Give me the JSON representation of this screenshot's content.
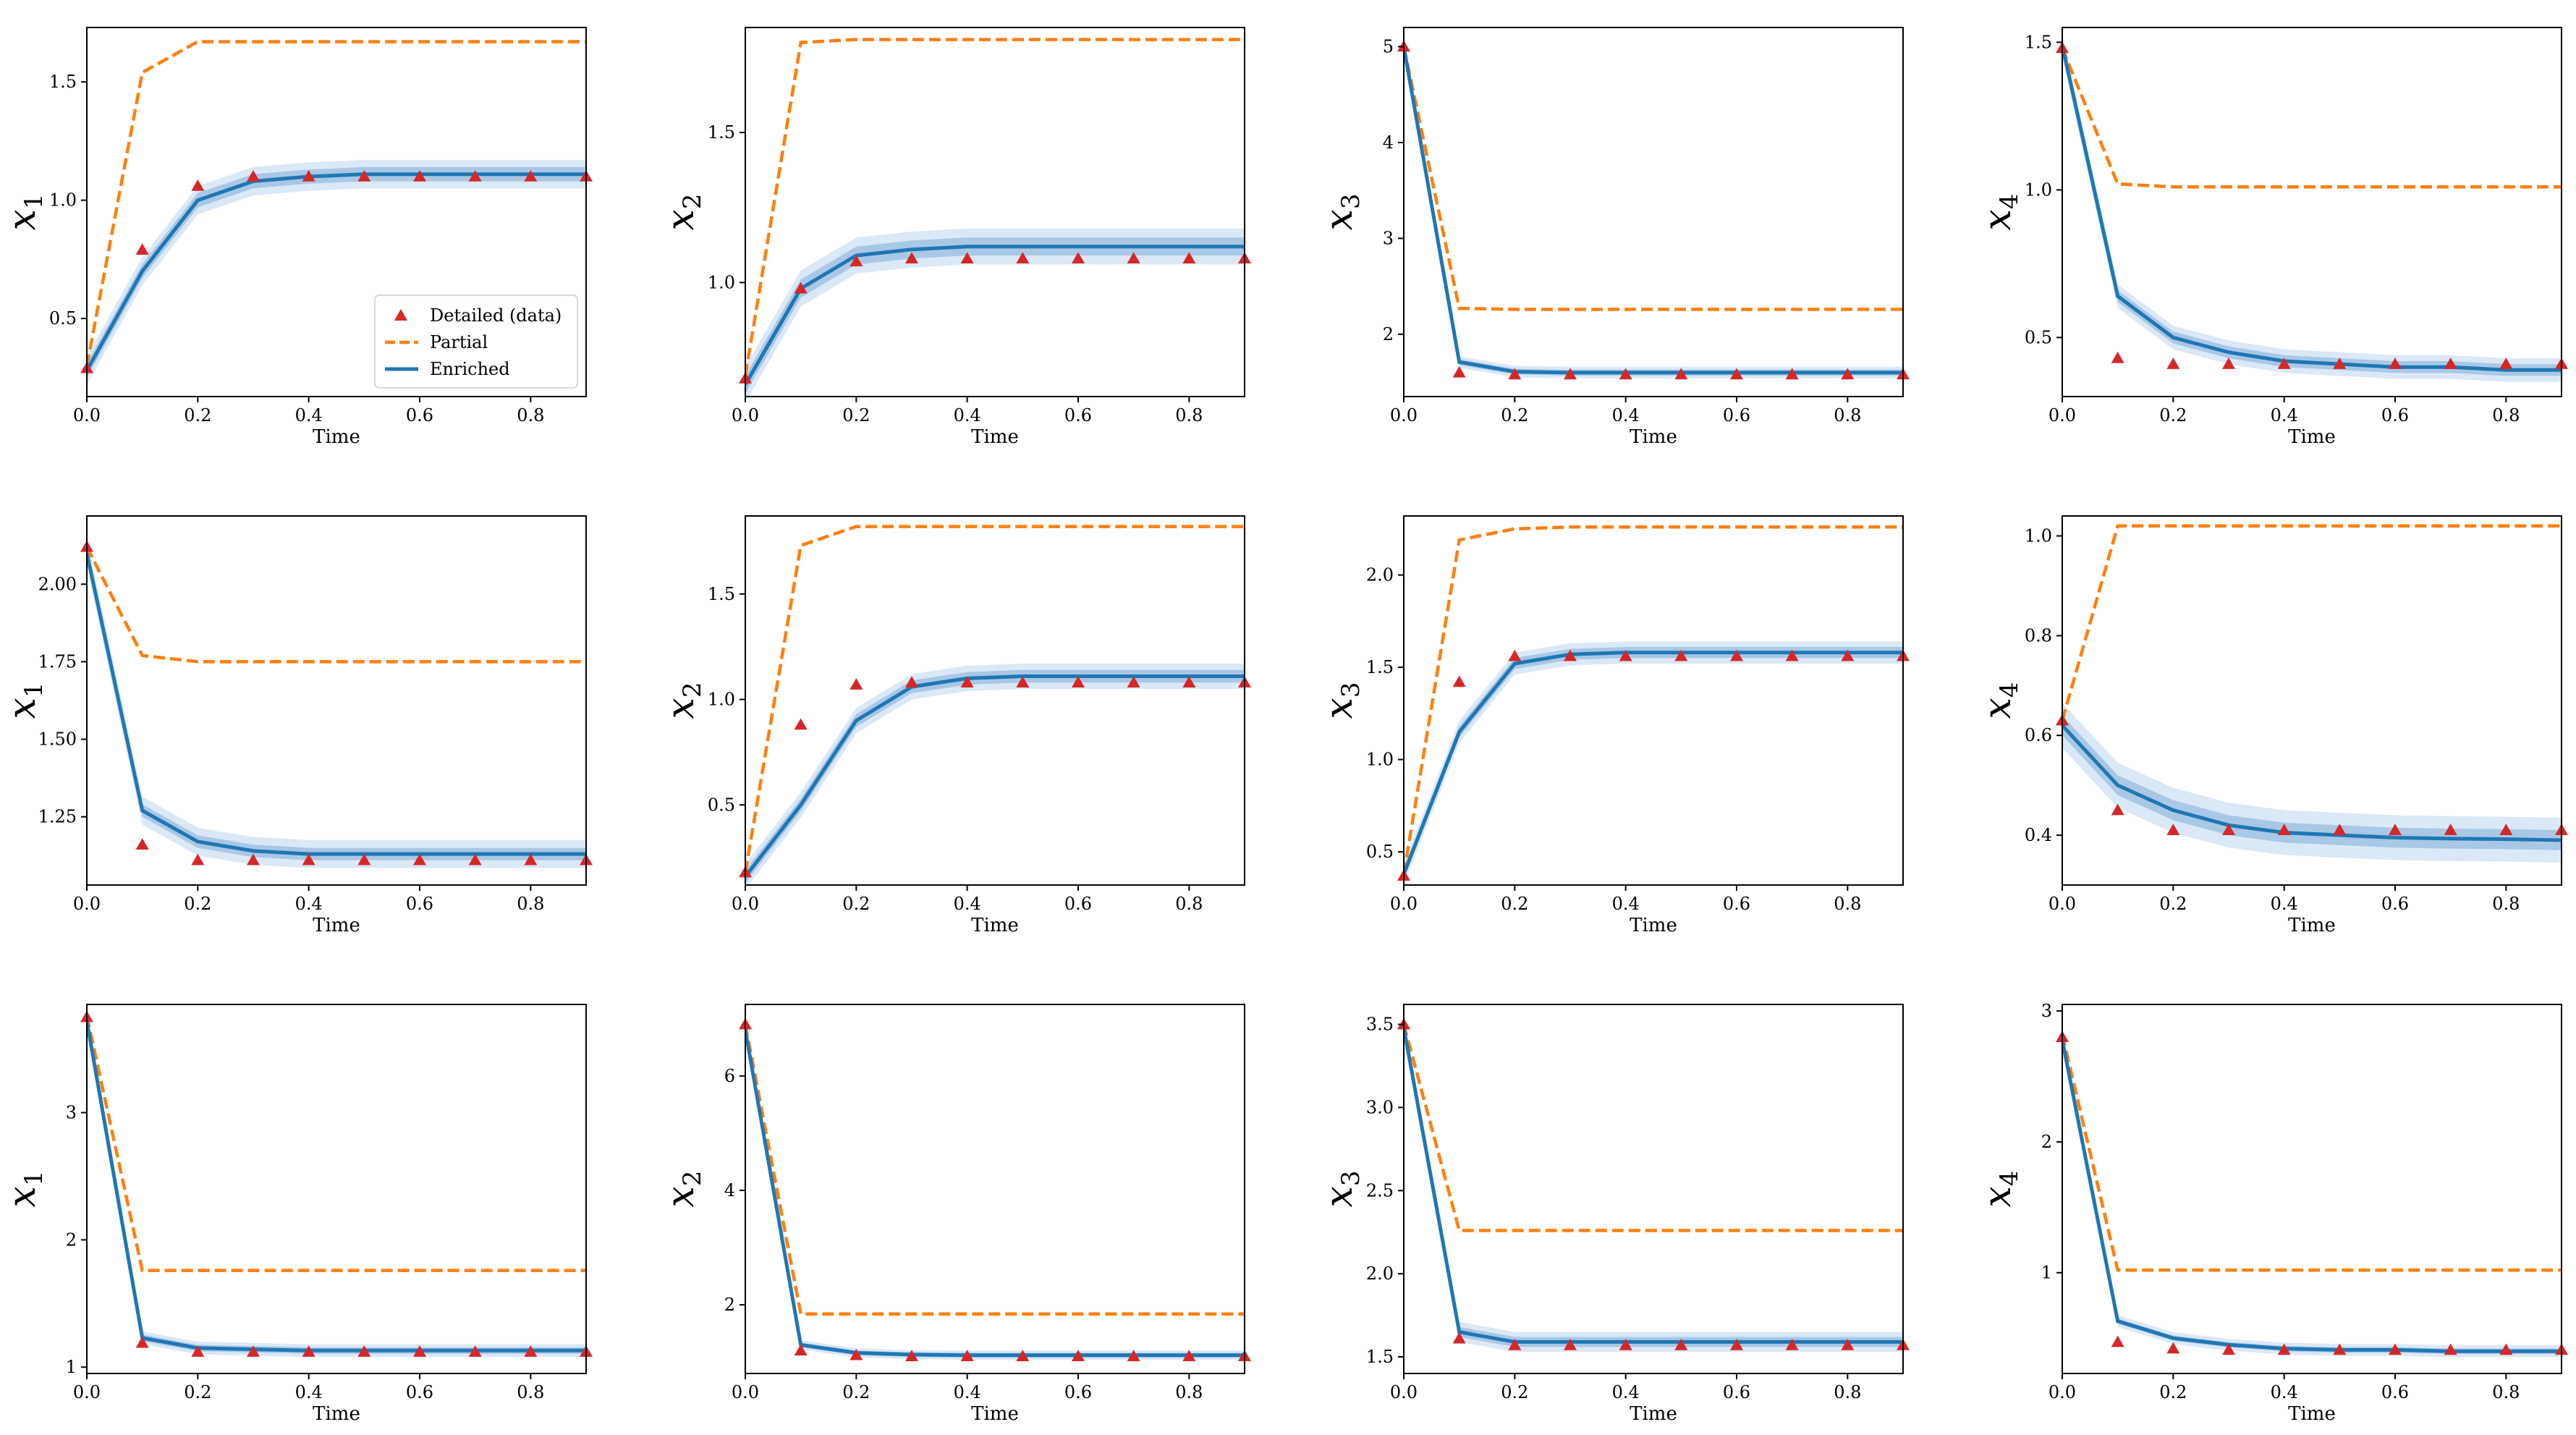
{
  "figure": {
    "legend": {
      "data_label": "Detailed (data)",
      "partial_label": "Partial",
      "enriched_label": "Enriched",
      "location": "lower right of top-left panel"
    },
    "colors": {
      "data": "#d62728",
      "partial": "#ff7f0e",
      "enriched": "#1f77b4",
      "band_outer": "#dbe8f6",
      "band_inner": "#a9c8e6"
    }
  },
  "chart_data": [
    {
      "type": "line",
      "row": 0,
      "col": 0,
      "ylabel_var": "x",
      "ylabel_sub": "1",
      "xlabel": "Time",
      "xlim": [
        0,
        0.9
      ],
      "ylim": [
        0.17,
        1.73
      ],
      "xticks": [
        0.0,
        0.2,
        0.4,
        0.6,
        0.8
      ],
      "yticks": [
        0.5,
        1.0,
        1.5
      ],
      "xtick_labels": [
        "0.0",
        "0.2",
        "0.4",
        "0.6",
        "0.8"
      ],
      "ytick_labels": [
        "0.5",
        "1.0",
        "1.5"
      ],
      "x": [
        0,
        0.1,
        0.2,
        0.3,
        0.4,
        0.5,
        0.6,
        0.7,
        0.8,
        0.9
      ],
      "data": [
        0.29,
        0.79,
        1.06,
        1.1,
        1.1,
        1.1,
        1.1,
        1.1,
        1.1,
        1.1
      ],
      "partial": [
        0.3,
        1.54,
        1.67,
        1.67,
        1.67,
        1.67,
        1.67,
        1.67,
        1.67,
        1.67
      ],
      "enriched": [
        0.28,
        0.7,
        1.0,
        1.08,
        1.1,
        1.11,
        1.11,
        1.11,
        1.11,
        1.11
      ],
      "band_inner": 0.03,
      "band_outer": 0.06,
      "legend": true
    },
    {
      "type": "line",
      "row": 0,
      "col": 1,
      "ylabel_var": "x",
      "ylabel_sub": "2",
      "xlabel": "Time",
      "xlim": [
        0,
        0.9
      ],
      "ylim": [
        0.62,
        1.85
      ],
      "xticks": [
        0.0,
        0.2,
        0.4,
        0.6,
        0.8
      ],
      "yticks": [
        1.0,
        1.5
      ],
      "xtick_labels": [
        "0.0",
        "0.2",
        "0.4",
        "0.6",
        "0.8"
      ],
      "ytick_labels": [
        "1.0",
        "1.5"
      ],
      "x": [
        0,
        0.1,
        0.2,
        0.3,
        0.4,
        0.5,
        0.6,
        0.7,
        0.8,
        0.9
      ],
      "data": [
        0.68,
        0.98,
        1.07,
        1.08,
        1.08,
        1.08,
        1.08,
        1.08,
        1.08,
        1.08
      ],
      "partial": [
        0.69,
        1.8,
        1.81,
        1.81,
        1.81,
        1.81,
        1.81,
        1.81,
        1.81,
        1.81
      ],
      "enriched": [
        0.66,
        0.98,
        1.09,
        1.11,
        1.12,
        1.12,
        1.12,
        1.12,
        1.12,
        1.12
      ],
      "band_inner": 0.03,
      "band_outer": 0.06,
      "legend": false
    },
    {
      "type": "line",
      "row": 0,
      "col": 2,
      "ylabel_var": "x",
      "ylabel_sub": "3",
      "xlabel": "Time",
      "xlim": [
        0,
        0.9
      ],
      "ylim": [
        1.35,
        5.2
      ],
      "xticks": [
        0.0,
        0.2,
        0.4,
        0.6,
        0.8
      ],
      "yticks": [
        2,
        3,
        4,
        5
      ],
      "xtick_labels": [
        "0.0",
        "0.2",
        "0.4",
        "0.6",
        "0.8"
      ],
      "ytick_labels": [
        "2",
        "3",
        "4",
        "5"
      ],
      "x": [
        0,
        0.1,
        0.2,
        0.3,
        0.4,
        0.5,
        0.6,
        0.7,
        0.8,
        0.9
      ],
      "data": [
        5.0,
        1.6,
        1.58,
        1.58,
        1.58,
        1.58,
        1.58,
        1.58,
        1.58,
        1.58
      ],
      "partial": [
        5.0,
        2.27,
        2.26,
        2.26,
        2.26,
        2.26,
        2.26,
        2.26,
        2.26,
        2.26
      ],
      "enriched": [
        5.0,
        1.71,
        1.61,
        1.6,
        1.6,
        1.6,
        1.6,
        1.6,
        1.6,
        1.6
      ],
      "band_inner": 0.03,
      "band_outer": 0.06,
      "legend": false
    },
    {
      "type": "line",
      "row": 0,
      "col": 3,
      "ylabel_var": "x",
      "ylabel_sub": "4",
      "xlabel": "Time",
      "xlim": [
        0,
        0.9
      ],
      "ylim": [
        0.3,
        1.55
      ],
      "xticks": [
        0.0,
        0.2,
        0.4,
        0.6,
        0.8
      ],
      "yticks": [
        0.5,
        1.0,
        1.5
      ],
      "xtick_labels": [
        "0.0",
        "0.2",
        "0.4",
        "0.6",
        "0.8"
      ],
      "ytick_labels": [
        "0.5",
        "1.0",
        "1.5"
      ],
      "x": [
        0,
        0.1,
        0.2,
        0.3,
        0.4,
        0.5,
        0.6,
        0.7,
        0.8,
        0.9
      ],
      "data": [
        1.48,
        0.43,
        0.41,
        0.41,
        0.41,
        0.41,
        0.41,
        0.41,
        0.41,
        0.41
      ],
      "partial": [
        1.48,
        1.02,
        1.01,
        1.01,
        1.01,
        1.01,
        1.01,
        1.01,
        1.01,
        1.01
      ],
      "enriched": [
        1.49,
        0.64,
        0.5,
        0.45,
        0.42,
        0.41,
        0.4,
        0.4,
        0.39,
        0.39
      ],
      "band_inner": 0.02,
      "band_outer": 0.04,
      "legend": false
    },
    {
      "type": "line",
      "row": 1,
      "col": 0,
      "ylabel_var": "x",
      "ylabel_sub": "1",
      "xlabel": "Time",
      "xlim": [
        0,
        0.9
      ],
      "ylim": [
        1.03,
        2.22
      ],
      "xticks": [
        0.0,
        0.2,
        0.4,
        0.6,
        0.8
      ],
      "yticks": [
        1.25,
        1.5,
        1.75,
        2.0
      ],
      "xtick_labels": [
        "0.0",
        "0.2",
        "0.4",
        "0.6",
        "0.8"
      ],
      "ytick_labels": [
        "1.25",
        "1.50",
        "1.75",
        "2.00"
      ],
      "x": [
        0,
        0.1,
        0.2,
        0.3,
        0.4,
        0.5,
        0.6,
        0.7,
        0.8,
        0.9
      ],
      "data": [
        2.12,
        1.16,
        1.11,
        1.11,
        1.11,
        1.11,
        1.11,
        1.11,
        1.11,
        1.11
      ],
      "partial": [
        2.12,
        1.77,
        1.75,
        1.75,
        1.75,
        1.75,
        1.75,
        1.75,
        1.75,
        1.75
      ],
      "enriched": [
        2.1,
        1.27,
        1.17,
        1.14,
        1.13,
        1.13,
        1.13,
        1.13,
        1.13,
        1.13
      ],
      "band_inner": 0.02,
      "band_outer": 0.045,
      "legend": false
    },
    {
      "type": "line",
      "row": 1,
      "col": 1,
      "ylabel_var": "x",
      "ylabel_sub": "2",
      "xlabel": "Time",
      "xlim": [
        0,
        0.9
      ],
      "ylim": [
        0.12,
        1.87
      ],
      "xticks": [
        0.0,
        0.2,
        0.4,
        0.6,
        0.8
      ],
      "yticks": [
        0.5,
        1.0,
        1.5
      ],
      "xtick_labels": [
        "0.0",
        "0.2",
        "0.4",
        "0.6",
        "0.8"
      ],
      "ytick_labels": [
        "0.5",
        "1.0",
        "1.5"
      ],
      "x": [
        0,
        0.1,
        0.2,
        0.3,
        0.4,
        0.5,
        0.6,
        0.7,
        0.8,
        0.9
      ],
      "data": [
        0.18,
        0.88,
        1.07,
        1.08,
        1.08,
        1.08,
        1.08,
        1.08,
        1.08,
        1.08
      ],
      "partial": [
        0.18,
        1.73,
        1.82,
        1.82,
        1.82,
        1.82,
        1.82,
        1.82,
        1.82,
        1.82
      ],
      "enriched": [
        0.16,
        0.5,
        0.9,
        1.06,
        1.1,
        1.11,
        1.11,
        1.11,
        1.11,
        1.11
      ],
      "band_inner": 0.03,
      "band_outer": 0.06,
      "legend": false
    },
    {
      "type": "line",
      "row": 1,
      "col": 2,
      "ylabel_var": "x",
      "ylabel_sub": "3",
      "xlabel": "Time",
      "xlim": [
        0,
        0.9
      ],
      "ylim": [
        0.32,
        2.32
      ],
      "xticks": [
        0.0,
        0.2,
        0.4,
        0.6,
        0.8
      ],
      "yticks": [
        0.5,
        1.0,
        1.5,
        2.0
      ],
      "xtick_labels": [
        "0.0",
        "0.2",
        "0.4",
        "0.6",
        "0.8"
      ],
      "ytick_labels": [
        "0.5",
        "1.0",
        "1.5",
        "2.0"
      ],
      "x": [
        0,
        0.1,
        0.2,
        0.3,
        0.4,
        0.5,
        0.6,
        0.7,
        0.8,
        0.9
      ],
      "data": [
        0.37,
        1.42,
        1.56,
        1.56,
        1.56,
        1.56,
        1.56,
        1.56,
        1.56,
        1.56
      ],
      "partial": [
        0.38,
        2.19,
        2.25,
        2.26,
        2.26,
        2.26,
        2.26,
        2.26,
        2.26,
        2.26
      ],
      "enriched": [
        0.38,
        1.15,
        1.52,
        1.57,
        1.58,
        1.58,
        1.58,
        1.58,
        1.58,
        1.58
      ],
      "band_inner": 0.03,
      "band_outer": 0.06,
      "legend": false
    },
    {
      "type": "line",
      "row": 1,
      "col": 3,
      "ylabel_var": "x",
      "ylabel_sub": "4",
      "xlabel": "Time",
      "xlim": [
        0,
        0.9
      ],
      "ylim": [
        0.3,
        1.04
      ],
      "xticks": [
        0.0,
        0.2,
        0.4,
        0.6,
        0.8
      ],
      "yticks": [
        0.4,
        0.6,
        0.8,
        1.0
      ],
      "xtick_labels": [
        "0.0",
        "0.2",
        "0.4",
        "0.6",
        "0.8"
      ],
      "ytick_labels": [
        "0.4",
        "0.6",
        "0.8",
        "1.0"
      ],
      "x": [
        0,
        0.1,
        0.2,
        0.3,
        0.4,
        0.5,
        0.6,
        0.7,
        0.8,
        0.9
      ],
      "data": [
        0.63,
        0.45,
        0.41,
        0.41,
        0.41,
        0.41,
        0.41,
        0.41,
        0.41,
        0.41
      ],
      "partial": [
        0.63,
        1.02,
        1.02,
        1.02,
        1.02,
        1.02,
        1.02,
        1.02,
        1.02,
        1.02
      ],
      "enriched": [
        0.62,
        0.5,
        0.45,
        0.42,
        0.405,
        0.4,
        0.395,
        0.393,
        0.392,
        0.39
      ],
      "band_inner": 0.02,
      "band_outer": 0.045,
      "legend": false
    },
    {
      "type": "line",
      "row": 2,
      "col": 0,
      "ylabel_var": "x",
      "ylabel_sub": "1",
      "xlabel": "Time",
      "xlim": [
        0,
        0.9
      ],
      "ylim": [
        0.95,
        3.85
      ],
      "xticks": [
        0.0,
        0.2,
        0.4,
        0.6,
        0.8
      ],
      "yticks": [
        1,
        2,
        3
      ],
      "xtick_labels": [
        "0.0",
        "0.2",
        "0.4",
        "0.6",
        "0.8"
      ],
      "ytick_labels": [
        "1",
        "2",
        "3"
      ],
      "x": [
        0,
        0.1,
        0.2,
        0.3,
        0.4,
        0.5,
        0.6,
        0.7,
        0.8,
        0.9
      ],
      "data": [
        3.75,
        1.19,
        1.12,
        1.12,
        1.12,
        1.12,
        1.12,
        1.12,
        1.12,
        1.12
      ],
      "partial": [
        3.76,
        1.76,
        1.76,
        1.76,
        1.76,
        1.76,
        1.76,
        1.76,
        1.76,
        1.76
      ],
      "enriched": [
        3.72,
        1.23,
        1.15,
        1.14,
        1.13,
        1.13,
        1.13,
        1.13,
        1.13,
        1.13
      ],
      "band_inner": 0.025,
      "band_outer": 0.05,
      "legend": false
    },
    {
      "type": "line",
      "row": 2,
      "col": 1,
      "ylabel_var": "x",
      "ylabel_sub": "2",
      "xlabel": "Time",
      "xlim": [
        0,
        0.9
      ],
      "ylim": [
        0.8,
        7.25
      ],
      "xticks": [
        0.0,
        0.2,
        0.4,
        0.6,
        0.8
      ],
      "yticks": [
        2,
        4,
        6
      ],
      "xtick_labels": [
        "0.0",
        "0.2",
        "0.4",
        "0.6",
        "0.8"
      ],
      "ytick_labels": [
        "2",
        "4",
        "6"
      ],
      "x": [
        0,
        0.1,
        0.2,
        0.3,
        0.4,
        0.5,
        0.6,
        0.7,
        0.8,
        0.9
      ],
      "data": [
        6.9,
        1.2,
        1.12,
        1.1,
        1.1,
        1.1,
        1.1,
        1.1,
        1.1,
        1.1
      ],
      "partial": [
        6.9,
        1.84,
        1.84,
        1.84,
        1.84,
        1.84,
        1.84,
        1.84,
        1.84,
        1.84
      ],
      "enriched": [
        6.8,
        1.3,
        1.16,
        1.13,
        1.12,
        1.12,
        1.12,
        1.12,
        1.12,
        1.12
      ],
      "band_inner": 0.04,
      "band_outer": 0.08,
      "legend": false
    },
    {
      "type": "line",
      "row": 2,
      "col": 2,
      "ylabel_var": "x",
      "ylabel_sub": "3",
      "xlabel": "Time",
      "xlim": [
        0,
        0.9
      ],
      "ylim": [
        1.4,
        3.62
      ],
      "xticks": [
        0.0,
        0.2,
        0.4,
        0.6,
        0.8
      ],
      "yticks": [
        1.5,
        2.0,
        2.5,
        3.0,
        3.5
      ],
      "xtick_labels": [
        "0.0",
        "0.2",
        "0.4",
        "0.6",
        "0.8"
      ],
      "ytick_labels": [
        "1.5",
        "2.0",
        "2.5",
        "3.0",
        "3.5"
      ],
      "x": [
        0,
        0.1,
        0.2,
        0.3,
        0.4,
        0.5,
        0.6,
        0.7,
        0.8,
        0.9
      ],
      "data": [
        3.5,
        1.61,
        1.57,
        1.57,
        1.57,
        1.57,
        1.57,
        1.57,
        1.57,
        1.57
      ],
      "partial": [
        3.5,
        2.26,
        2.26,
        2.26,
        2.26,
        2.26,
        2.26,
        2.26,
        2.26,
        2.26
      ],
      "enriched": [
        3.48,
        1.65,
        1.59,
        1.59,
        1.59,
        1.59,
        1.59,
        1.59,
        1.59,
        1.59
      ],
      "band_inner": 0.03,
      "band_outer": 0.06,
      "legend": false
    },
    {
      "type": "line",
      "row": 2,
      "col": 3,
      "ylabel_var": "x",
      "ylabel_sub": "4",
      "xlabel": "Time",
      "xlim": [
        0,
        0.9
      ],
      "ylim": [
        0.23,
        3.05
      ],
      "xticks": [
        0.0,
        0.2,
        0.4,
        0.6,
        0.8
      ],
      "yticks": [
        1,
        2,
        3
      ],
      "xtick_labels": [
        "0.0",
        "0.2",
        "0.4",
        "0.6",
        "0.8"
      ],
      "ytick_labels": [
        "1",
        "2",
        "3"
      ],
      "x": [
        0,
        0.1,
        0.2,
        0.3,
        0.4,
        0.5,
        0.6,
        0.7,
        0.8,
        0.9
      ],
      "data": [
        2.8,
        0.47,
        0.42,
        0.41,
        0.41,
        0.41,
        0.41,
        0.41,
        0.41,
        0.41
      ],
      "partial": [
        2.82,
        1.02,
        1.02,
        1.02,
        1.02,
        1.02,
        1.02,
        1.02,
        1.02,
        1.02
      ],
      "enriched": [
        2.78,
        0.63,
        0.5,
        0.45,
        0.42,
        0.41,
        0.41,
        0.4,
        0.4,
        0.4
      ],
      "band_inner": 0.02,
      "band_outer": 0.045,
      "legend": false
    }
  ]
}
